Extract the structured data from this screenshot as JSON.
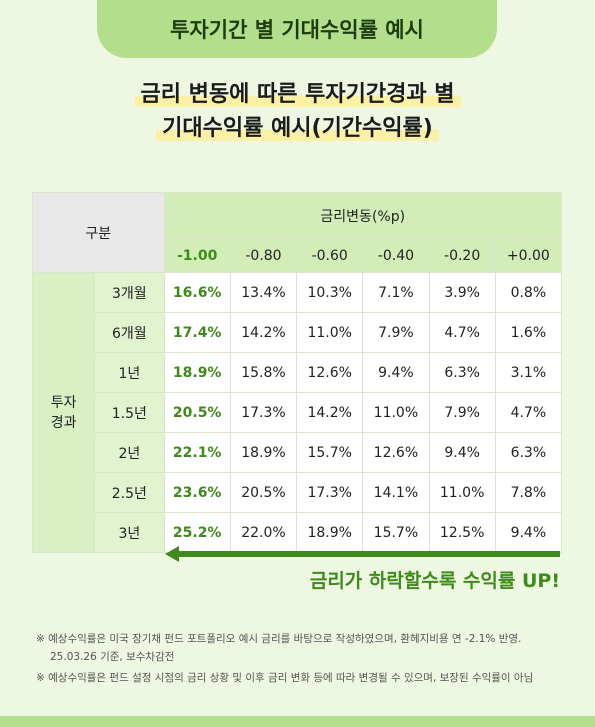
{
  "header": {
    "title": "투자기간 별 기대수익률 예시",
    "subtitle_lines": [
      "금리 변동에 따른 투자기간경과 별",
      "기대수익률 예시(기간수익률)"
    ]
  },
  "table": {
    "corner": "구분",
    "group_header": "금리변동(%p)",
    "columns": [
      "-1.00",
      "-0.80",
      "-0.60",
      "-0.40",
      "-0.20",
      "+0.00"
    ],
    "row_group": [
      "투자",
      "경과"
    ],
    "rows": [
      {
        "label": "3개월",
        "values": [
          "16.6%",
          "13.4%",
          "10.3%",
          "7.1%",
          "3.9%",
          "0.8%"
        ]
      },
      {
        "label": "6개월",
        "values": [
          "17.4%",
          "14.2%",
          "11.0%",
          "7.9%",
          "4.7%",
          "1.6%"
        ]
      },
      {
        "label": "1년",
        "values": [
          "18.9%",
          "15.8%",
          "12.6%",
          "9.4%",
          "6.3%",
          "3.1%"
        ]
      },
      {
        "label": "1.5년",
        "values": [
          "20.5%",
          "17.3%",
          "14.2%",
          "11.0%",
          "7.9%",
          "4.7%"
        ]
      },
      {
        "label": "2년",
        "values": [
          "22.1%",
          "18.9%",
          "15.7%",
          "12.6%",
          "9.4%",
          "6.3%"
        ]
      },
      {
        "label": "2.5년",
        "values": [
          "23.6%",
          "20.5%",
          "17.3%",
          "14.1%",
          "11.0%",
          "7.8%"
        ]
      },
      {
        "label": "3년",
        "values": [
          "25.2%",
          "22.0%",
          "18.9%",
          "15.7%",
          "12.5%",
          "9.4%"
        ]
      }
    ]
  },
  "callout": "금리가 하락할수록 수익률 UP!",
  "footnotes": [
    "※ 예상수익률은 미국 장기채 펀드 포트폴리오 예시 금리를 바탕으로 작성하였으며, 환헤지비용 연 -2.1% 반영. 25.03.26 기준, 보수차감전",
    "※ 예상수익률은 펀드 설정 시점의 금리 상황 및 이후 금리 변화 등에 따라 변경될 수 있으며, 보장된 수익률이 아님"
  ]
}
